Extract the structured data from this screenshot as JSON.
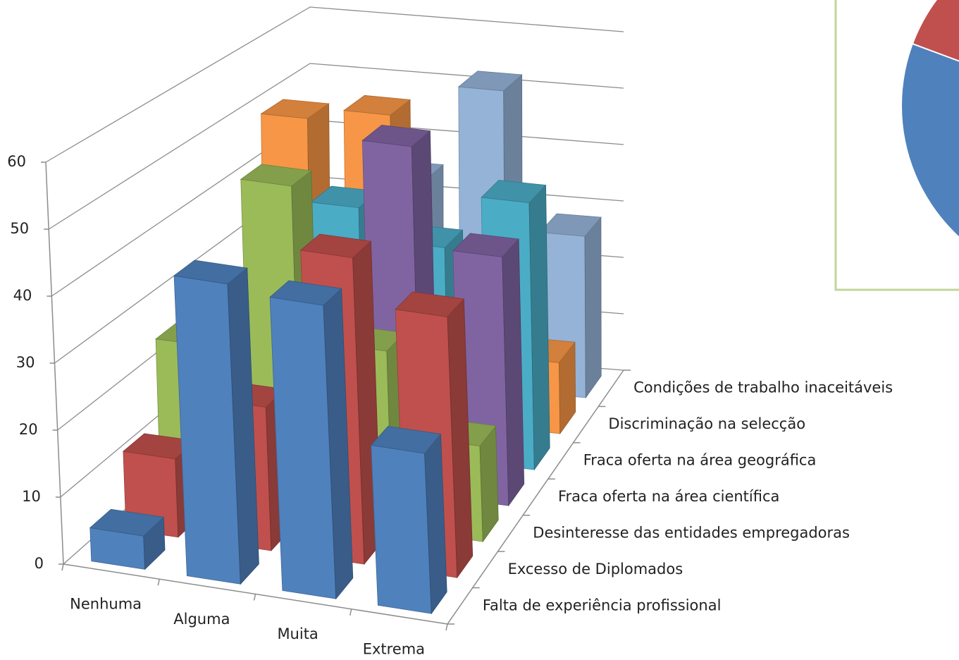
{
  "chart_data": {
    "type": "bar3d",
    "categories": [
      "Nenhuma",
      "Alguma",
      "Muita",
      "Extrema"
    ],
    "series": [
      {
        "name": "Falta de experiência profissional",
        "color": "#4F81BD",
        "values": [
          5,
          45,
          44,
          24
        ]
      },
      {
        "name": "Excesso de Diplomados",
        "color": "#C0504D",
        "values": [
          12,
          22,
          47,
          40
        ]
      },
      {
        "name": "Desinteresse das entidades empregadoras",
        "color": "#9BBB59",
        "values": [
          25,
          52,
          28,
          15
        ]
      },
      {
        "name": "Fraca oferta na área científica",
        "color": "#8064A2",
        "values": [
          18,
          30,
          56,
          40
        ]
      },
      {
        "name": "Fraca oferta na área geográfica",
        "color": "#4BACC6",
        "values": [
          8,
          40,
          35,
          44
        ]
      },
      {
        "name": "Discriminação na selecção",
        "color": "#F79646",
        "values": [
          49,
          51,
          22,
          12
        ]
      },
      {
        "name": "Condições de trabalho  inaceitáveis",
        "color": "#95B3D7",
        "values": [
          20,
          35,
          52,
          28
        ]
      }
    ],
    "ylim": [
      0,
      60
    ],
    "yticks": [
      0,
      10,
      20,
      30,
      40,
      50,
      60
    ],
    "grid": true
  }
}
